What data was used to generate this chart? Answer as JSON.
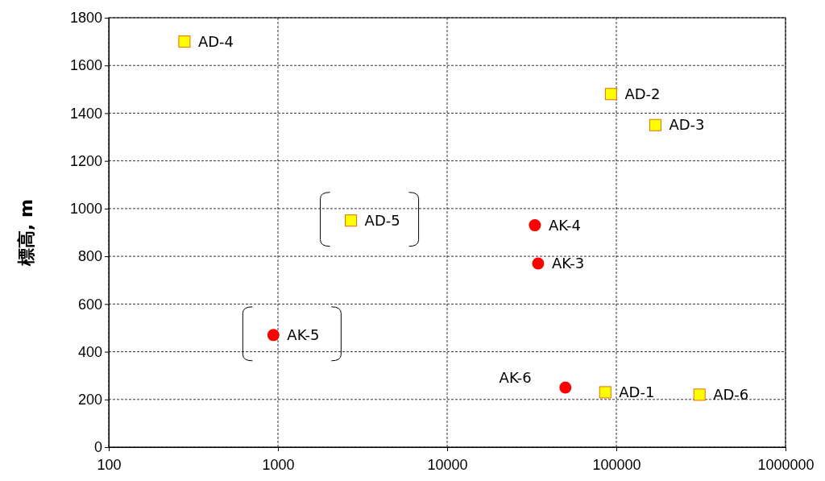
{
  "chart_data": {
    "type": "scatter",
    "ylabel": "標高, m",
    "log": "x",
    "grid": true,
    "xlim": [
      100,
      1000000
    ],
    "xticks": [
      100,
      1000,
      10000,
      100000,
      1000000
    ],
    "ylim": [
      0,
      1800
    ],
    "yticks": [
      0,
      200,
      400,
      600,
      800,
      1000,
      1200,
      1400,
      1600,
      1800
    ],
    "series": [
      {
        "color": "#ffff00",
        "marker": "square",
        "x": [
          86000,
          93000,
          170000,
          280,
          2700,
          310000
        ],
        "values": [
          230,
          1480,
          1350,
          1700,
          950,
          220
        ]
      },
      {
        "color": "#ff0000",
        "marker": "circle",
        "x": [
          34500,
          33000,
          940,
          50000
        ],
        "values": [
          770,
          930,
          470,
          250
        ]
      }
    ],
    "annotations": [
      {
        "text": "AD-1",
        "x": 86000,
        "y": 230
      },
      {
        "text": "AD-2",
        "x": 93000,
        "y": 1480
      },
      {
        "text": "AD-3",
        "x": 170000,
        "y": 1350
      },
      {
        "text": "AD-4",
        "x": 280,
        "y": 1700
      },
      {
        "text": "AD-5",
        "x": 2700,
        "y": 950
      },
      {
        "text": "AD-6",
        "x": 310000,
        "y": 220
      },
      {
        "text": "AK-3",
        "x": 34500,
        "y": 770
      },
      {
        "text": "AK-4",
        "x": 33000,
        "y": 930
      },
      {
        "text": "AK-5",
        "x": 940,
        "y": 470
      },
      {
        "text": "AK-6",
        "x": 50000,
        "y": 250
      }
    ]
  }
}
